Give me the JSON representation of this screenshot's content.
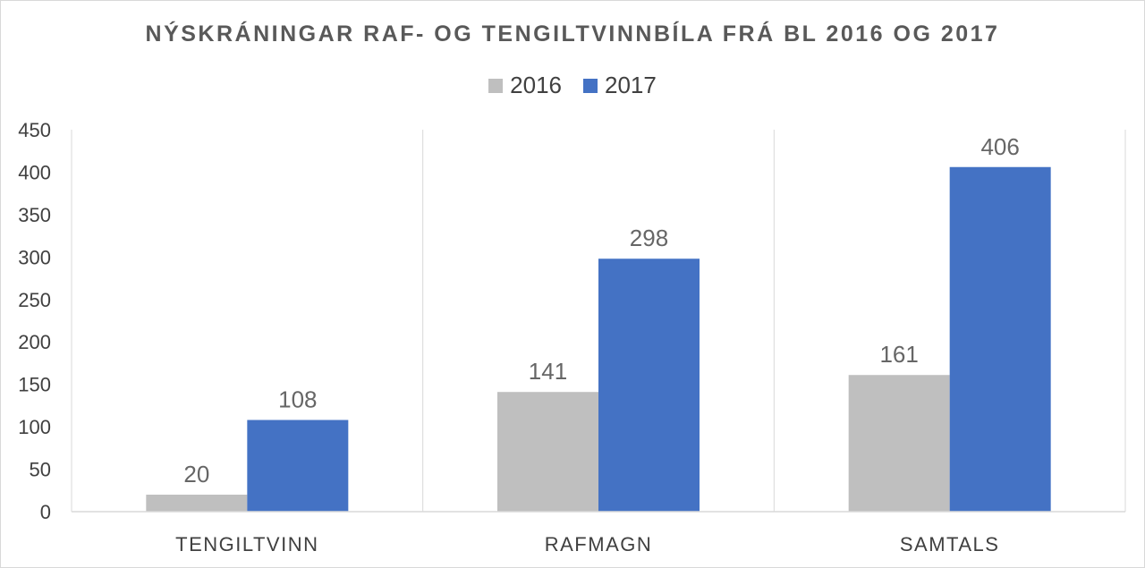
{
  "chart_data": {
    "type": "bar",
    "title": "NÝSKRÁNINGAR RAF- OG TENGILTVINNBÍLA FRÁ BL 2016 OG 2017",
    "categories": [
      "TENGILTVINN",
      "RAFMAGN",
      "SAMTALS"
    ],
    "series": [
      {
        "name": "2016",
        "values": [
          20,
          141,
          161
        ],
        "color": "#bfbfbf"
      },
      {
        "name": "2017",
        "values": [
          108,
          298,
          406
        ],
        "color": "#4472c4"
      }
    ],
    "ylim": [
      0,
      450
    ],
    "yticks": [
      "0",
      "50",
      "100",
      "150",
      "200",
      "250",
      "300",
      "350",
      "400",
      "450"
    ],
    "ytick_values": [
      0,
      50,
      100,
      150,
      200,
      250,
      300,
      350,
      400,
      450
    ],
    "legend_position": "top",
    "grid": "vertical category separators",
    "data_labels": true
  }
}
